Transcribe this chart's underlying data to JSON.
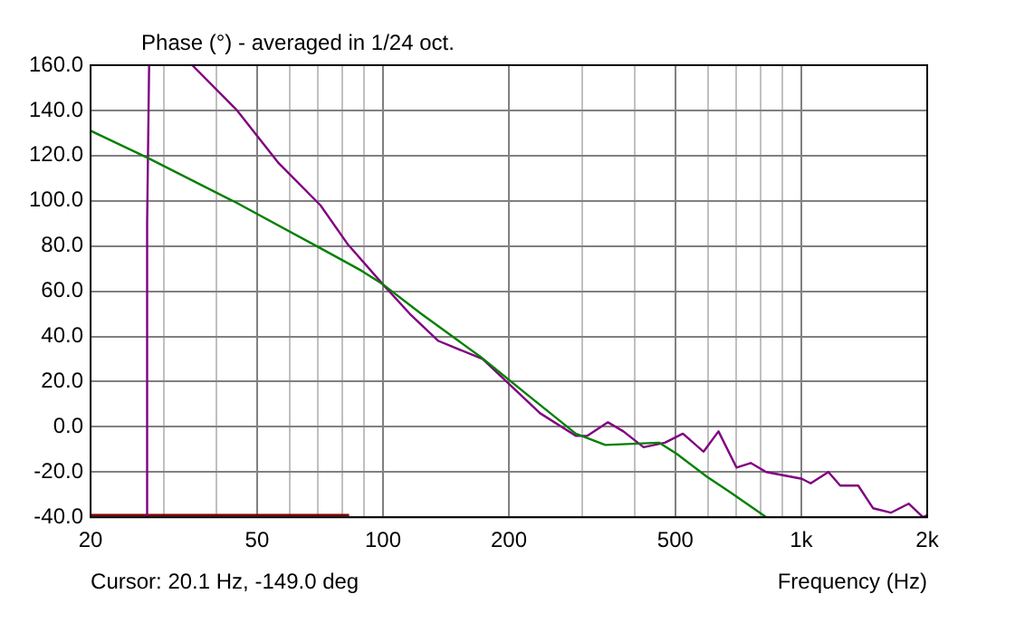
{
  "chart_data": {
    "type": "line",
    "title": "Phase (°) - averaged in 1/24 oct.",
    "xlabel": "Frequency (Hz)",
    "annotations": [
      "Cursor: 20.1 Hz, -149.0 deg"
    ],
    "series": [
      {
        "color": "#008000",
        "x": [
          20,
          27.4,
          44.8,
          70.9,
          89,
          100,
          123.4,
          171,
          222,
          289,
          340,
          457,
          504,
          594,
          677,
          825
        ],
        "values": [
          131,
          119,
          99,
          79,
          69,
          63,
          50,
          31,
          14,
          -3,
          -8,
          -7,
          -12,
          -22,
          -29,
          -40
        ]
      },
      {
        "color": "#800080",
        "x": [
          27.3,
          27.3,
          27.6
        ],
        "values": [
          -40,
          90,
          160
        ]
      },
      {
        "color": "#800080",
        "x": [
          35,
          44.8,
          56.1,
          70.9,
          82.2,
          100,
          115.9,
          135.7,
          173,
          200,
          237.5,
          289,
          308,
          345,
          375.6,
          419.8,
          472,
          521,
          584,
          634,
          700,
          757,
          824,
          1003,
          1053,
          1161,
          1239,
          1368,
          1484,
          1637,
          1806,
          1955,
          2000
        ],
        "values": [
          160,
          140,
          117,
          98,
          81,
          63,
          50,
          38,
          30,
          19,
          6,
          -4,
          -4,
          2,
          -2,
          -9,
          -7,
          -3,
          -11,
          -2,
          -18,
          -16,
          -20,
          -23,
          -25,
          -20,
          -26,
          -26,
          -36,
          -38,
          -34,
          -40,
          -39
        ]
      },
      {
        "color": "#800000",
        "x": [
          20,
          83
        ],
        "values": [
          -39,
          -39
        ]
      }
    ],
    "xlim": [
      20,
      2000
    ],
    "ylim": [
      -40,
      160
    ],
    "log": "x",
    "xticks": [
      20,
      {
        "value": 30,
        "label": null
      },
      {
        "value": 40,
        "label": null
      },
      50,
      {
        "value": 60,
        "label": null
      },
      {
        "value": 70,
        "label": null
      },
      {
        "value": 80,
        "label": null
      },
      {
        "value": 90,
        "label": null
      },
      100,
      200,
      {
        "value": 300,
        "label": null
      },
      {
        "value": 400,
        "label": null
      },
      500,
      {
        "value": 600,
        "label": null
      },
      {
        "value": 700,
        "label": null
      },
      {
        "value": 800,
        "label": null
      },
      {
        "value": 900,
        "label": null
      },
      {
        "value": 1000,
        "label": "1k"
      },
      {
        "value": 2000,
        "label": "2k"
      }
    ],
    "yticks": [
      {
        "value": -40,
        "label": "-40.0"
      },
      {
        "value": -20,
        "label": "-20.0"
      },
      {
        "value": 0,
        "label": "0.0"
      },
      {
        "value": 20,
        "label": "20.0"
      },
      {
        "value": 40,
        "label": "40.0"
      },
      {
        "value": 60,
        "label": "60.0"
      },
      {
        "value": 80,
        "label": "80.0"
      },
      {
        "value": 100,
        "label": "100.0"
      },
      {
        "value": 120,
        "label": "120.0"
      },
      {
        "value": 140,
        "label": "140.0"
      },
      {
        "value": 160,
        "label": "160.0"
      }
    ],
    "grid": true,
    "legend": false,
    "marker": "none",
    "line_style": "solid"
  }
}
